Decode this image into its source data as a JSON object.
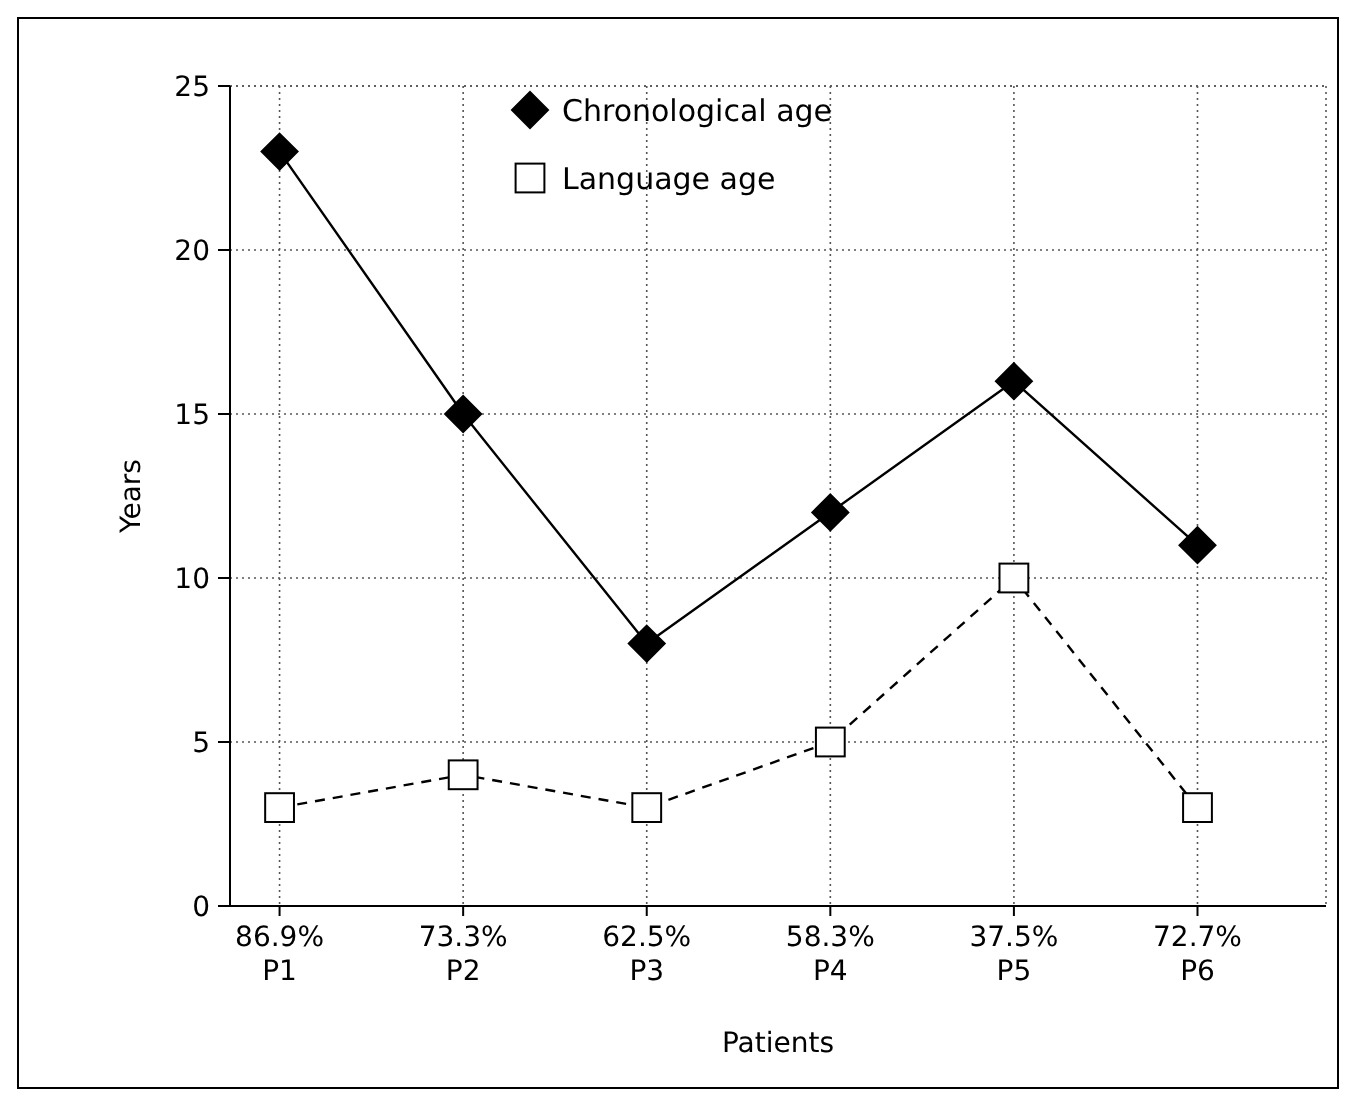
{
  "chart_data": {
    "type": "line",
    "xlabel": "Patients",
    "ylabel": "Years",
    "categories": [
      "86.9%\nP1",
      "73.3%\nP2",
      "62.5%\nP3",
      "58.3%\nP4",
      "37.5%\nP5",
      "72.7%\nP6"
    ],
    "series": [
      {
        "name": "Chronological age",
        "color": "#000000",
        "values": [
          23,
          15,
          8,
          12,
          16,
          11
        ],
        "marker": "diamond",
        "line_style": "solid"
      },
      {
        "name": "Language age",
        "color": "#000000",
        "values": [
          3,
          4,
          3,
          5,
          10,
          3
        ],
        "marker": "square",
        "line_style": "dashed"
      }
    ],
    "ylim": [
      0,
      25
    ],
    "yticks": [
      0,
      5,
      10,
      15,
      20,
      25
    ],
    "grid": true,
    "legend": "top"
  }
}
